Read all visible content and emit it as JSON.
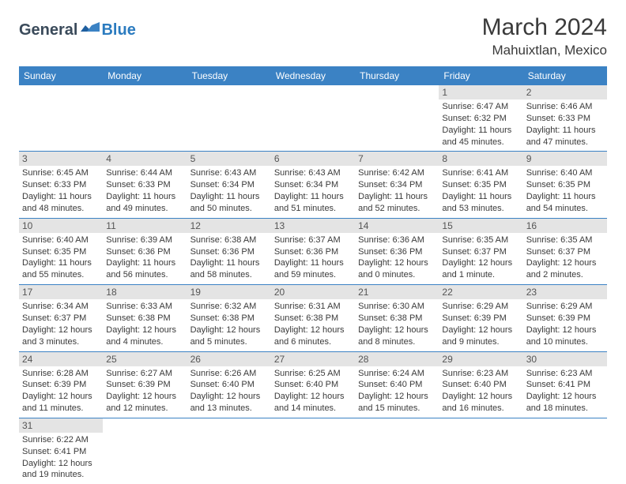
{
  "logo": {
    "general": "General",
    "blue": "Blue"
  },
  "title": "March 2024",
  "location": "Mahuixtlan, Mexico",
  "colors": {
    "header_bg": "#3b82c4",
    "header_text": "#ffffff",
    "daynum_bg": "#e4e4e4",
    "cell_border": "#3b82c4",
    "text": "#3a3a3a"
  },
  "day_headers": [
    "Sunday",
    "Monday",
    "Tuesday",
    "Wednesday",
    "Thursday",
    "Friday",
    "Saturday"
  ],
  "weeks": [
    [
      null,
      null,
      null,
      null,
      null,
      {
        "n": "1",
        "sr": "Sunrise: 6:47 AM",
        "ss": "Sunset: 6:32 PM",
        "dl": "Daylight: 11 hours and 45 minutes."
      },
      {
        "n": "2",
        "sr": "Sunrise: 6:46 AM",
        "ss": "Sunset: 6:33 PM",
        "dl": "Daylight: 11 hours and 47 minutes."
      }
    ],
    [
      {
        "n": "3",
        "sr": "Sunrise: 6:45 AM",
        "ss": "Sunset: 6:33 PM",
        "dl": "Daylight: 11 hours and 48 minutes."
      },
      {
        "n": "4",
        "sr": "Sunrise: 6:44 AM",
        "ss": "Sunset: 6:33 PM",
        "dl": "Daylight: 11 hours and 49 minutes."
      },
      {
        "n": "5",
        "sr": "Sunrise: 6:43 AM",
        "ss": "Sunset: 6:34 PM",
        "dl": "Daylight: 11 hours and 50 minutes."
      },
      {
        "n": "6",
        "sr": "Sunrise: 6:43 AM",
        "ss": "Sunset: 6:34 PM",
        "dl": "Daylight: 11 hours and 51 minutes."
      },
      {
        "n": "7",
        "sr": "Sunrise: 6:42 AM",
        "ss": "Sunset: 6:34 PM",
        "dl": "Daylight: 11 hours and 52 minutes."
      },
      {
        "n": "8",
        "sr": "Sunrise: 6:41 AM",
        "ss": "Sunset: 6:35 PM",
        "dl": "Daylight: 11 hours and 53 minutes."
      },
      {
        "n": "9",
        "sr": "Sunrise: 6:40 AM",
        "ss": "Sunset: 6:35 PM",
        "dl": "Daylight: 11 hours and 54 minutes."
      }
    ],
    [
      {
        "n": "10",
        "sr": "Sunrise: 6:40 AM",
        "ss": "Sunset: 6:35 PM",
        "dl": "Daylight: 11 hours and 55 minutes."
      },
      {
        "n": "11",
        "sr": "Sunrise: 6:39 AM",
        "ss": "Sunset: 6:36 PM",
        "dl": "Daylight: 11 hours and 56 minutes."
      },
      {
        "n": "12",
        "sr": "Sunrise: 6:38 AM",
        "ss": "Sunset: 6:36 PM",
        "dl": "Daylight: 11 hours and 58 minutes."
      },
      {
        "n": "13",
        "sr": "Sunrise: 6:37 AM",
        "ss": "Sunset: 6:36 PM",
        "dl": "Daylight: 11 hours and 59 minutes."
      },
      {
        "n": "14",
        "sr": "Sunrise: 6:36 AM",
        "ss": "Sunset: 6:36 PM",
        "dl": "Daylight: 12 hours and 0 minutes."
      },
      {
        "n": "15",
        "sr": "Sunrise: 6:35 AM",
        "ss": "Sunset: 6:37 PM",
        "dl": "Daylight: 12 hours and 1 minute."
      },
      {
        "n": "16",
        "sr": "Sunrise: 6:35 AM",
        "ss": "Sunset: 6:37 PM",
        "dl": "Daylight: 12 hours and 2 minutes."
      }
    ],
    [
      {
        "n": "17",
        "sr": "Sunrise: 6:34 AM",
        "ss": "Sunset: 6:37 PM",
        "dl": "Daylight: 12 hours and 3 minutes."
      },
      {
        "n": "18",
        "sr": "Sunrise: 6:33 AM",
        "ss": "Sunset: 6:38 PM",
        "dl": "Daylight: 12 hours and 4 minutes."
      },
      {
        "n": "19",
        "sr": "Sunrise: 6:32 AM",
        "ss": "Sunset: 6:38 PM",
        "dl": "Daylight: 12 hours and 5 minutes."
      },
      {
        "n": "20",
        "sr": "Sunrise: 6:31 AM",
        "ss": "Sunset: 6:38 PM",
        "dl": "Daylight: 12 hours and 6 minutes."
      },
      {
        "n": "21",
        "sr": "Sunrise: 6:30 AM",
        "ss": "Sunset: 6:38 PM",
        "dl": "Daylight: 12 hours and 8 minutes."
      },
      {
        "n": "22",
        "sr": "Sunrise: 6:29 AM",
        "ss": "Sunset: 6:39 PM",
        "dl": "Daylight: 12 hours and 9 minutes."
      },
      {
        "n": "23",
        "sr": "Sunrise: 6:29 AM",
        "ss": "Sunset: 6:39 PM",
        "dl": "Daylight: 12 hours and 10 minutes."
      }
    ],
    [
      {
        "n": "24",
        "sr": "Sunrise: 6:28 AM",
        "ss": "Sunset: 6:39 PM",
        "dl": "Daylight: 12 hours and 11 minutes."
      },
      {
        "n": "25",
        "sr": "Sunrise: 6:27 AM",
        "ss": "Sunset: 6:39 PM",
        "dl": "Daylight: 12 hours and 12 minutes."
      },
      {
        "n": "26",
        "sr": "Sunrise: 6:26 AM",
        "ss": "Sunset: 6:40 PM",
        "dl": "Daylight: 12 hours and 13 minutes."
      },
      {
        "n": "27",
        "sr": "Sunrise: 6:25 AM",
        "ss": "Sunset: 6:40 PM",
        "dl": "Daylight: 12 hours and 14 minutes."
      },
      {
        "n": "28",
        "sr": "Sunrise: 6:24 AM",
        "ss": "Sunset: 6:40 PM",
        "dl": "Daylight: 12 hours and 15 minutes."
      },
      {
        "n": "29",
        "sr": "Sunrise: 6:23 AM",
        "ss": "Sunset: 6:40 PM",
        "dl": "Daylight: 12 hours and 16 minutes."
      },
      {
        "n": "30",
        "sr": "Sunrise: 6:23 AM",
        "ss": "Sunset: 6:41 PM",
        "dl": "Daylight: 12 hours and 18 minutes."
      }
    ],
    [
      {
        "n": "31",
        "sr": "Sunrise: 6:22 AM",
        "ss": "Sunset: 6:41 PM",
        "dl": "Daylight: 12 hours and 19 minutes."
      },
      null,
      null,
      null,
      null,
      null,
      null
    ]
  ]
}
